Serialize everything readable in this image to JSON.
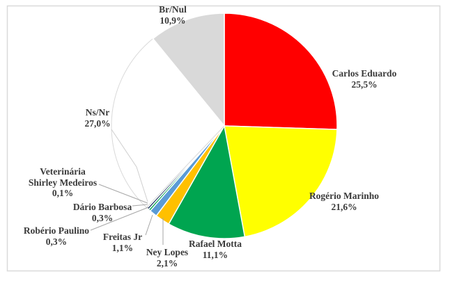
{
  "frame": {
    "background": "#FFFFFF",
    "border_color": "#D9D9D9"
  },
  "chart_data": {
    "type": "pie",
    "title": "",
    "unit": "%",
    "decimal_separator": ",",
    "direction": "clockwise",
    "start_angle_deg": 0,
    "legend_position": "none",
    "label_style": "outside labels with gray leader lines for small slices",
    "text_color": "#3A3A3A",
    "leader_line_color": "#A6A6A6",
    "slices": [
      {
        "label": "Carlos Eduardo",
        "value": 25.5,
        "pct_label": "25,5%",
        "color": "#FF0000"
      },
      {
        "label": "Rogério Marinho",
        "value": 21.6,
        "pct_label": "21,6%",
        "color": "#FFFF00"
      },
      {
        "label": "Rafael Motta",
        "value": 11.1,
        "pct_label": "11,1%",
        "color": "#00A550"
      },
      {
        "label": "Ney Lopes",
        "value": 2.1,
        "pct_label": "2,1%",
        "color": "#FFC000"
      },
      {
        "label": "Freitas Jr",
        "value": 1.1,
        "pct_label": "1,1%",
        "color": "#5B9BD5"
      },
      {
        "label": "Robério Paulino",
        "value": 0.3,
        "pct_label": "0,3%",
        "color": "#00A550"
      },
      {
        "label": "Dário Barbosa",
        "value": 0.3,
        "pct_label": "0,3%",
        "color": "#1F3864"
      },
      {
        "label": "Veterinária Shirley Medeiros",
        "value": 0.1,
        "pct_label": "0,1%",
        "color": "#17375E",
        "label_lines": [
          "Veterinária",
          "Shirley Medeiros"
        ]
      },
      {
        "label": "Ns/Nr",
        "value": 27.0,
        "pct_label": "27,0%",
        "color": "#FFFFFF",
        "border": "#D9D9D9"
      },
      {
        "label": "Br/Nul",
        "value": 10.9,
        "pct_label": "10,9%",
        "color": "#D9D9D9"
      }
    ]
  }
}
